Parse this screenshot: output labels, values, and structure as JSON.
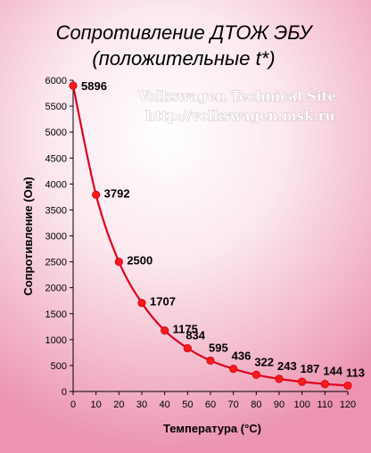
{
  "chart_data": {
    "type": "line",
    "title": "Сопротивление ДТОЖ  ЭБУ",
    "subtitle": "(положительные t*)",
    "xlabel": "Температура (°С)",
    "ylabel": "Сопротивление (Ом)",
    "x": [
      0,
      10,
      20,
      30,
      40,
      50,
      60,
      70,
      80,
      90,
      100,
      110,
      120
    ],
    "values": [
      5896,
      3792,
      2500,
      1707,
      1175,
      834,
      595,
      436,
      322,
      243,
      187,
      144,
      113
    ],
    "xlim": [
      0,
      120
    ],
    "ylim": [
      0,
      6000
    ],
    "xticks": [
      0,
      10,
      20,
      30,
      40,
      50,
      60,
      70,
      80,
      90,
      100,
      110,
      120
    ],
    "yticks": [
      0,
      500,
      1000,
      1500,
      2000,
      2500,
      3000,
      3500,
      4000,
      4500,
      5000,
      5500,
      6000
    ],
    "grid": false,
    "line_color": "#e0001b",
    "marker_color": "#ff1a1a"
  },
  "watermark": {
    "line1": "Volkswagen Technical Site",
    "line2": "http://volkswagen.msk.ru"
  }
}
